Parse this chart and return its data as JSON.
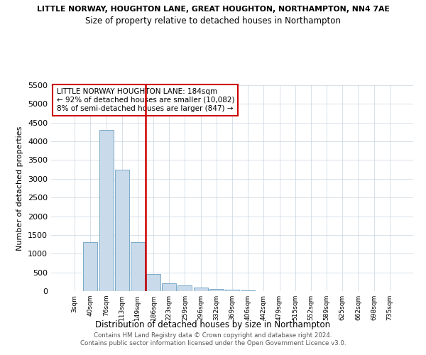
{
  "title1": "LITTLE NORWAY, HOUGHTON LANE, GREAT HOUGHTON, NORTHAMPTON, NN4 7AE",
  "title2": "Size of property relative to detached houses in Northampton",
  "xlabel": "Distribution of detached houses by size in Northampton",
  "ylabel": "Number of detached properties",
  "footer1": "Contains HM Land Registry data © Crown copyright and database right 2024.",
  "footer2": "Contains public sector information licensed under the Open Government Licence v3.0.",
  "annotation_line1": "LITTLE NORWAY HOUGHTON LANE: 184sqm",
  "annotation_line2": "← 92% of detached houses are smaller (10,082)",
  "annotation_line3": "8% of semi-detached houses are larger (847) →",
  "bar_labels": [
    "3sqm",
    "40sqm",
    "76sqm",
    "113sqm",
    "149sqm",
    "186sqm",
    "223sqm",
    "259sqm",
    "296sqm",
    "332sqm",
    "369sqm",
    "406sqm",
    "442sqm",
    "479sqm",
    "515sqm",
    "552sqm",
    "589sqm",
    "625sqm",
    "662sqm",
    "698sqm",
    "735sqm"
  ],
  "bar_values": [
    0,
    1300,
    4300,
    3250,
    1300,
    450,
    200,
    150,
    100,
    50,
    30,
    20,
    0,
    0,
    0,
    0,
    0,
    0,
    0,
    0,
    0
  ],
  "bar_color": "#c9daea",
  "bar_edge_color": "#7aaac8",
  "vline_color": "#cc0000",
  "annotation_box_color": "#cc0000",
  "ylim": [
    0,
    5500
  ],
  "yticks": [
    0,
    500,
    1000,
    1500,
    2000,
    2500,
    3000,
    3500,
    4000,
    4500,
    5000,
    5500
  ],
  "background_color": "#ffffff",
  "grid_color": "#c8d4e0"
}
